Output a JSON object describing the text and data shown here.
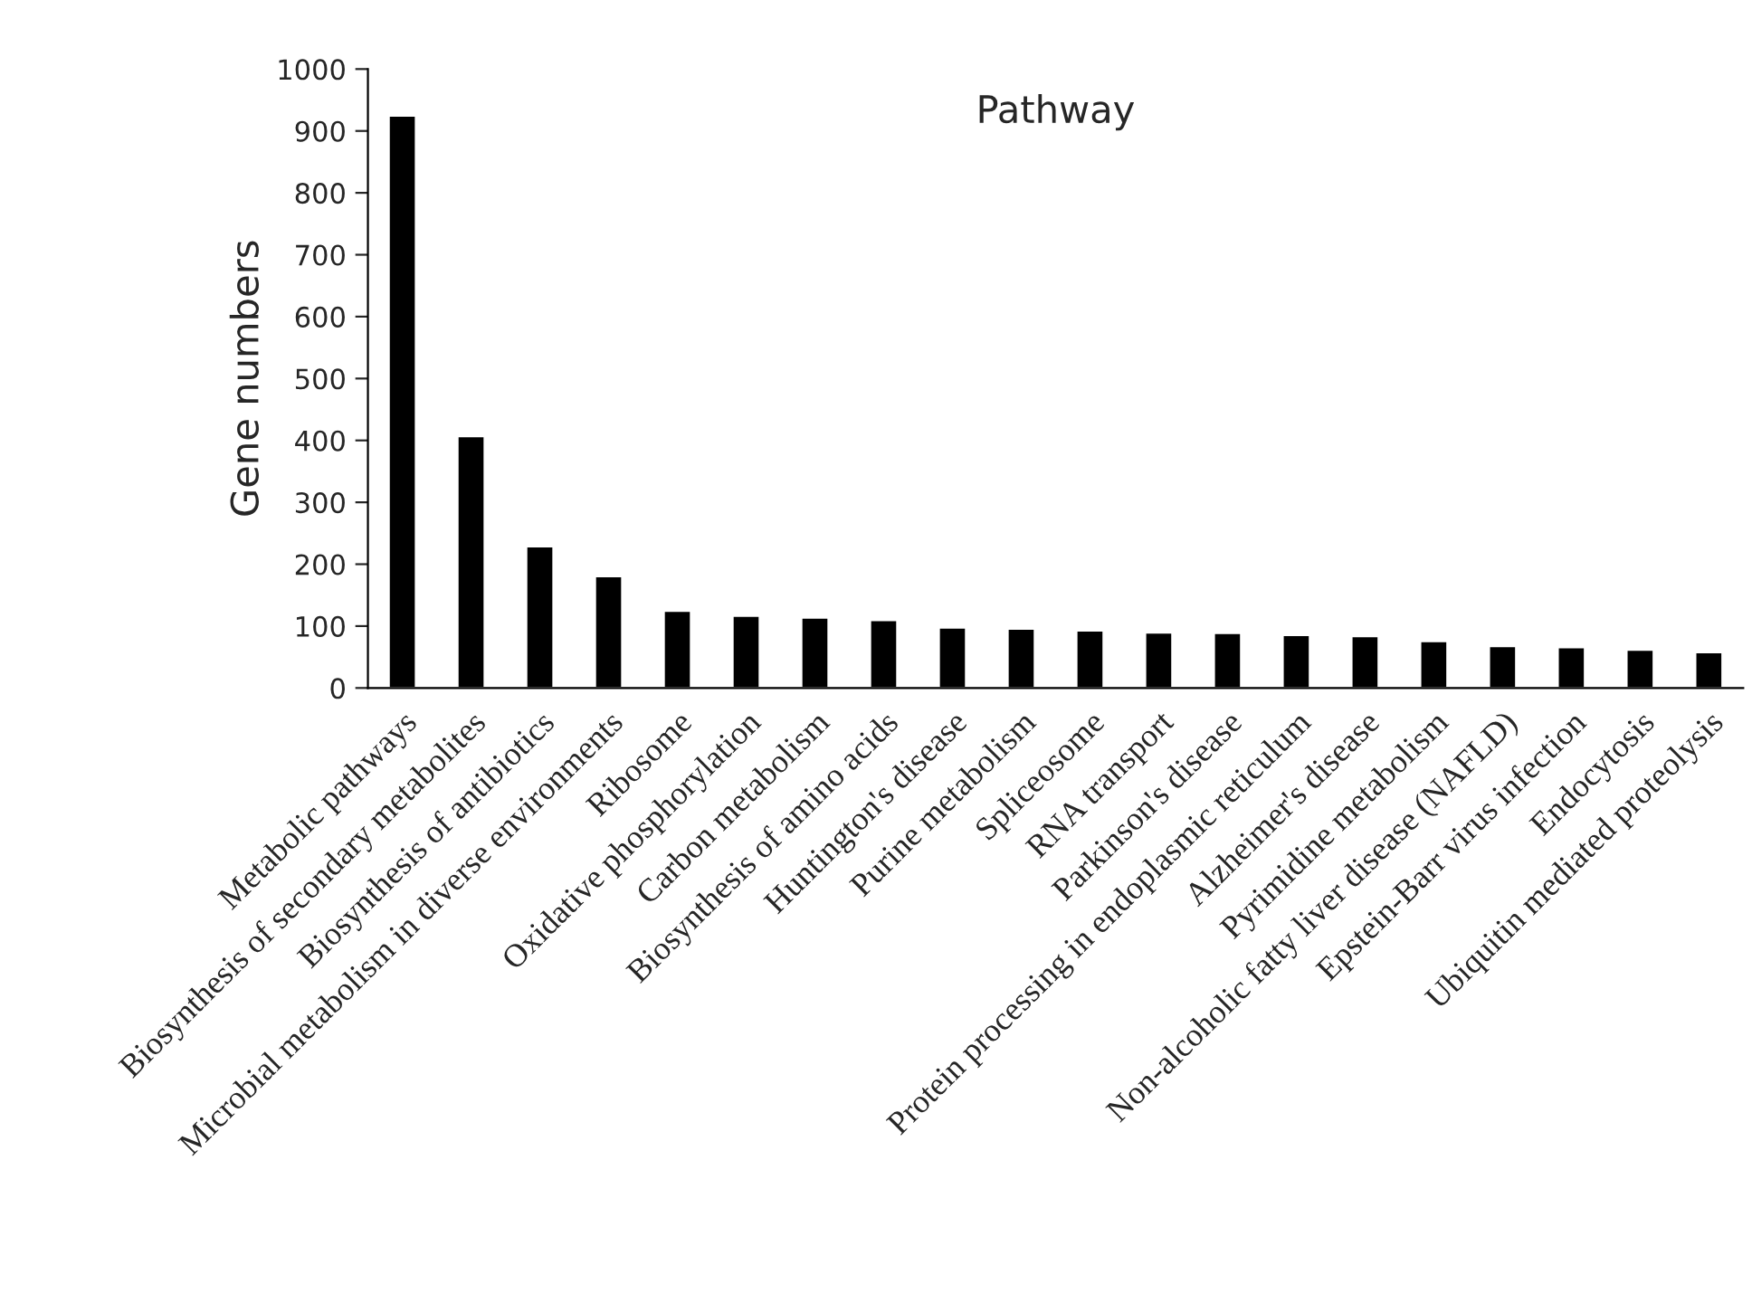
{
  "chart_data": {
    "type": "bar",
    "title": "Pathway",
    "ylabel": "Gene numbers",
    "categories": [
      "Metabolic pathways",
      "Biosynthesis of secondary metabolites",
      "Biosynthesis of antibiotics",
      "Microbial metabolism in diverse environments",
      "Ribosome",
      "Oxidative phosphorylation",
      "Carbon metabolism",
      "Biosynthesis of amino acids",
      "Huntington's disease",
      "Purine metabolism",
      "Spliceosome",
      "RNA transport",
      "Parkinson's disease",
      "Protein processing in endoplasmic reticulum",
      "Alzheimer's disease",
      "Pyrimidine metabolism",
      "Non-alcoholic fatty liver disease (NAFLD)",
      "Epstein-Barr virus infection",
      "Endocytosis",
      "Ubiquitin mediated proteolysis"
    ],
    "values": [
      925,
      407,
      229,
      181,
      125,
      117,
      114,
      110,
      98,
      96,
      93,
      90,
      89,
      86,
      84,
      76,
      68,
      66,
      62,
      58
    ],
    "color": "#000000",
    "ylim": [
      0,
      1000
    ],
    "yticks": [
      0,
      100,
      200,
      300,
      400,
      500,
      600,
      700,
      800,
      900,
      1000
    ],
    "grid": false,
    "legend": false
  }
}
